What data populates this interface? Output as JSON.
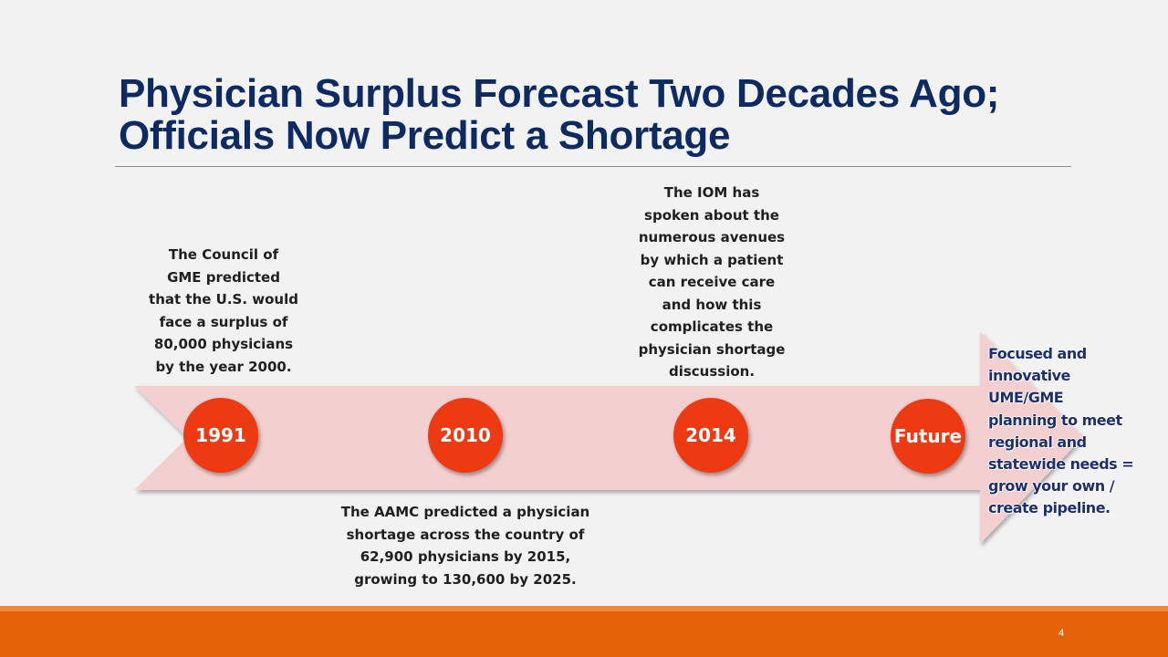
{
  "slide": {
    "title_line1": "Physician Surplus Forecast Two Decades Ago;",
    "title_line2": "Officials Now Predict a Shortage",
    "page_number": "4"
  },
  "timeline": {
    "milestones": [
      {
        "label": "1991",
        "note": [
          "The Council of",
          "GME predicted",
          "that the U.S. would",
          "face a surplus of",
          "80,000 physicians",
          "by the year 2000."
        ]
      },
      {
        "label": "2010",
        "note": [
          "The AAMC predicted  a physician",
          "shortage across the country of",
          "62,900 physicians by 2015,",
          "growing to 130,600 by 2025."
        ]
      },
      {
        "label": "2014",
        "note": [
          "The IOM has",
          "spoken about the",
          "numerous avenues",
          "by which a patient",
          "can receive care",
          "and how this",
          "complicates the",
          "physician shortage",
          "discussion."
        ]
      },
      {
        "label": "Future",
        "note": [
          "Focused and",
          "innovative",
          "UME/GME",
          "planning to meet",
          "regional and",
          "statewide needs =",
          "grow your own /",
          "create pipeline."
        ]
      }
    ]
  },
  "colors": {
    "title": "#0d2a63",
    "node": "#ee3a12",
    "arrow_fill": "#f4cfcf",
    "footer": "#e36209",
    "future_text": "#1d2f6e"
  }
}
